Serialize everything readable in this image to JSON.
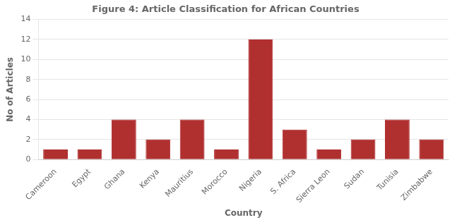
{
  "chart_data": {
    "type": "bar",
    "title": "Figure 4: Article Classification for African Countries",
    "xlabel": "Country",
    "ylabel": "No of Articles",
    "categories": [
      "Cameroon",
      "Egypt",
      "Ghana",
      "Kenya",
      "Mauritius",
      "Morocco",
      "Nigeria",
      "S. Africa",
      "Sierra Leon",
      "Sudan",
      "Tunisia",
      "Zimbabwe"
    ],
    "values": [
      1,
      1,
      4,
      2,
      4,
      1,
      12,
      3,
      1,
      2,
      4,
      2
    ],
    "color": "#b03030",
    "ylim": [
      0,
      14
    ],
    "yticks": [
      0,
      2,
      4,
      6,
      8,
      10,
      12,
      14
    ],
    "grid": true
  }
}
